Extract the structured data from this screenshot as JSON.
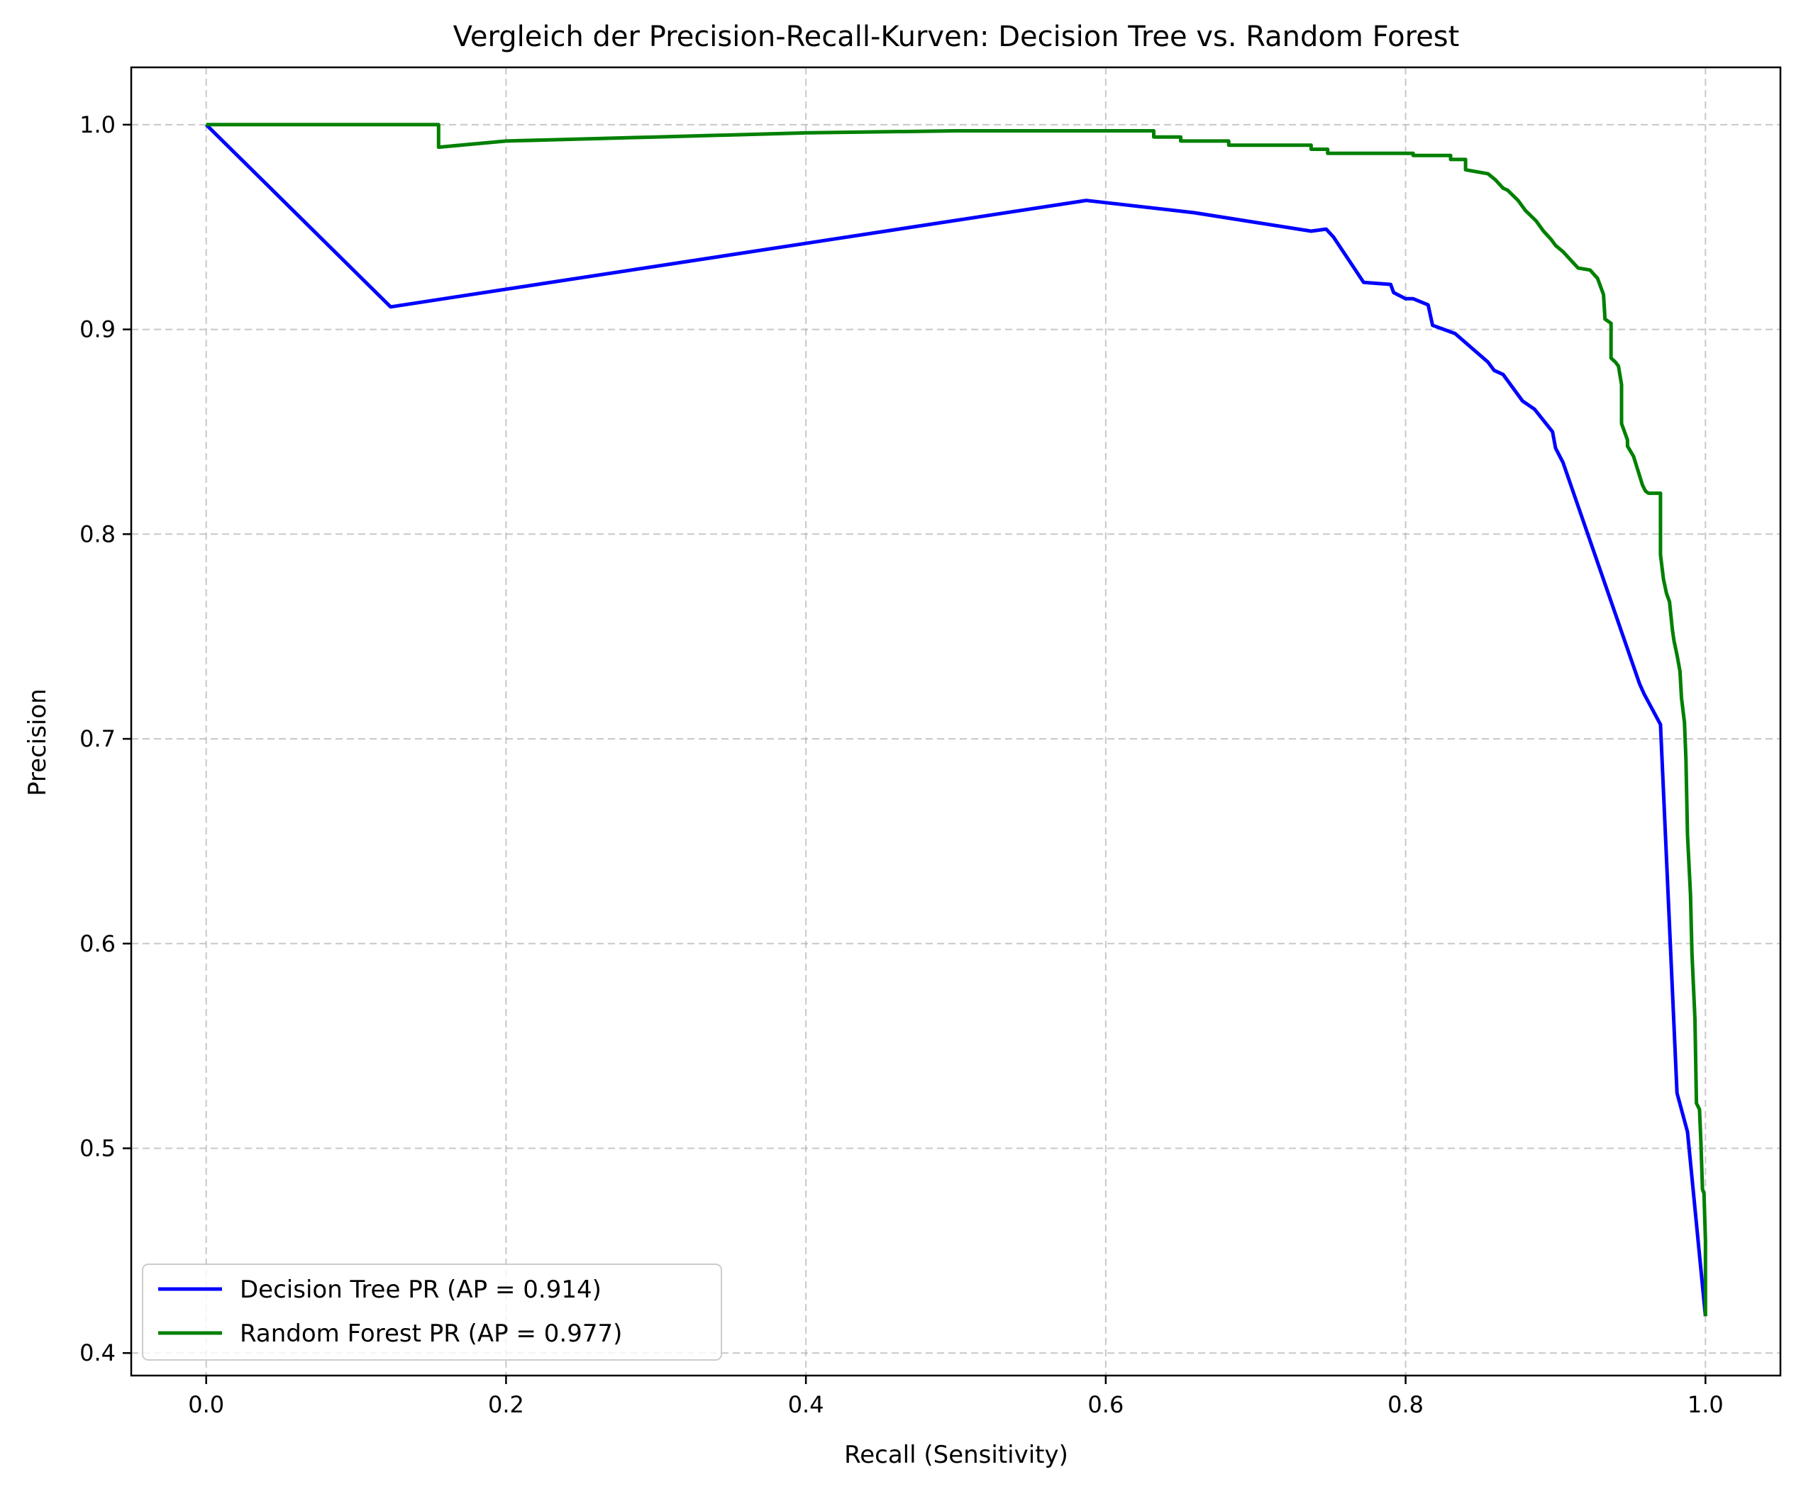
{
  "chart_data": {
    "type": "line",
    "title": "Vergleich der Precision-Recall-Kurven: Decision Tree vs. Random Forest",
    "xlabel": "Recall (Sensitivity)",
    "ylabel": "Precision",
    "xlim": [
      -0.05,
      1.05
    ],
    "ylim": [
      0.389,
      1.028
    ],
    "xticks": [
      0.0,
      0.2,
      0.4,
      0.6,
      0.8,
      1.0
    ],
    "xtick_labels": [
      "0.0",
      "0.2",
      "0.4",
      "0.6",
      "0.8",
      "1.0"
    ],
    "yticks": [
      0.4,
      0.5,
      0.6,
      0.7,
      0.8,
      0.9,
      1.0
    ],
    "ytick_labels": [
      "0.4",
      "0.5",
      "0.6",
      "0.7",
      "0.8",
      "0.9",
      "1.0"
    ],
    "grid": true,
    "legend_position": "lower-left",
    "series": [
      {
        "name": "Decision Tree PR (AP = 0.914)",
        "color": "#0000ff",
        "x": [
          0.0,
          0.123,
          0.587,
          0.659,
          0.737,
          0.747,
          0.752,
          0.772,
          0.79,
          0.792,
          0.8,
          0.805,
          0.815,
          0.818,
          0.833,
          0.855,
          0.859,
          0.865,
          0.878,
          0.886,
          0.898,
          0.9,
          0.905,
          0.956,
          0.959,
          0.97,
          0.981,
          0.988,
          1.0
        ],
        "y": [
          1.0,
          0.911,
          0.963,
          0.957,
          0.948,
          0.949,
          0.945,
          0.923,
          0.922,
          0.918,
          0.915,
          0.915,
          0.912,
          0.902,
          0.898,
          0.884,
          0.88,
          0.878,
          0.865,
          0.861,
          0.85,
          0.842,
          0.835,
          0.727,
          0.722,
          0.707,
          0.527,
          0.508,
          0.418
        ]
      },
      {
        "name": "Random Forest PR (AP = 0.977)",
        "color": "#008000",
        "x": [
          0.0,
          0.155,
          0.155,
          0.2,
          0.3,
          0.4,
          0.5,
          0.6,
          0.632,
          0.632,
          0.65,
          0.65,
          0.682,
          0.682,
          0.737,
          0.737,
          0.748,
          0.748,
          0.805,
          0.805,
          0.83,
          0.83,
          0.84,
          0.84,
          0.855,
          0.86,
          0.865,
          0.868,
          0.875,
          0.88,
          0.887,
          0.892,
          0.897,
          0.9,
          0.905,
          0.91,
          0.915,
          0.923,
          0.928,
          0.932,
          0.933,
          0.937,
          0.937,
          0.94,
          0.942,
          0.944,
          0.944,
          0.948,
          0.948,
          0.952,
          0.955,
          0.958,
          0.96,
          0.962,
          0.97,
          0.97,
          0.972,
          0.974,
          0.976,
          0.978,
          0.979,
          0.981,
          0.983,
          0.984,
          0.986,
          0.987,
          0.988,
          0.99,
          0.991,
          0.993,
          0.994,
          0.996,
          0.997,
          0.998,
          0.999,
          1.0,
          1.0
        ],
        "y": [
          1.0,
          1.0,
          0.989,
          0.992,
          0.994,
          0.996,
          0.997,
          0.997,
          0.997,
          0.994,
          0.994,
          0.992,
          0.992,
          0.99,
          0.99,
          0.988,
          0.988,
          0.986,
          0.986,
          0.985,
          0.985,
          0.983,
          0.983,
          0.978,
          0.976,
          0.973,
          0.969,
          0.968,
          0.963,
          0.958,
          0.953,
          0.948,
          0.944,
          0.941,
          0.938,
          0.934,
          0.93,
          0.929,
          0.925,
          0.917,
          0.905,
          0.903,
          0.886,
          0.884,
          0.882,
          0.873,
          0.854,
          0.846,
          0.843,
          0.838,
          0.831,
          0.824,
          0.821,
          0.82,
          0.82,
          0.79,
          0.778,
          0.771,
          0.767,
          0.753,
          0.748,
          0.741,
          0.733,
          0.72,
          0.708,
          0.69,
          0.653,
          0.624,
          0.595,
          0.563,
          0.522,
          0.519,
          0.502,
          0.48,
          0.478,
          0.455,
          0.418
        ]
      }
    ]
  }
}
